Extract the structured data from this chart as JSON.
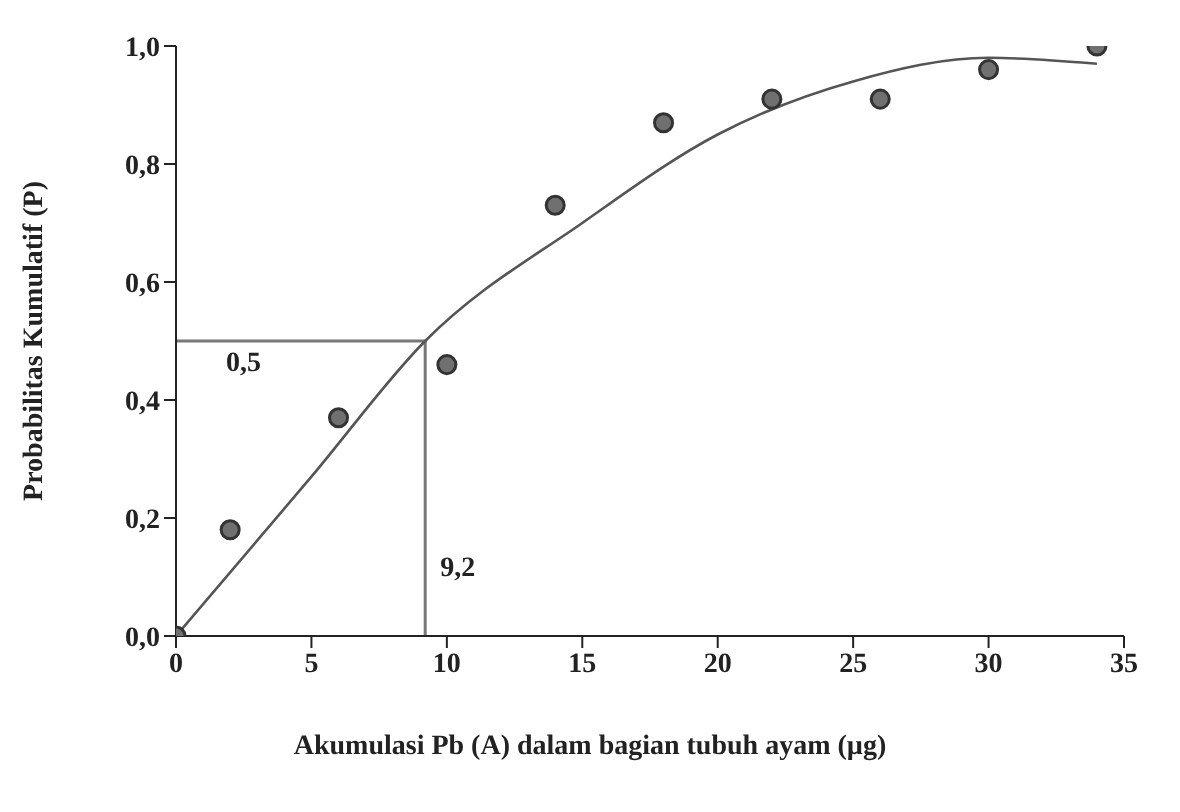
{
  "chart_data": {
    "type": "scatter",
    "xlabel": "Akumulasi Pb (A) dalam bagian tubuh ayam (µg)",
    "ylabel": "Probabilitas Kumulatif (P)",
    "xlim": [
      0,
      35
    ],
    "xticks": [
      0,
      5,
      10,
      15,
      20,
      25,
      30,
      35
    ],
    "ylim": [
      0,
      1
    ],
    "yticks": [
      {
        "value": 0,
        "label": "0,0"
      },
      {
        "value": 0.2,
        "label": "0,2"
      },
      {
        "value": 0.4,
        "label": "0,4"
      },
      {
        "value": 0.6,
        "label": "0,6"
      },
      {
        "value": 0.8,
        "label": "0,8"
      },
      {
        "value": 1,
        "label": "1,0"
      }
    ],
    "grid": false,
    "series": [
      {
        "color": "#707070",
        "marker": "circle",
        "x": [
          0,
          2,
          6,
          10,
          14,
          18,
          22,
          26,
          30,
          34
        ],
        "values": [
          0,
          0.18,
          0.37,
          0.46,
          0.73,
          0.87,
          0.91,
          0.91,
          0.96,
          1.0
        ]
      },
      {
        "type": "line",
        "color": "#555555",
        "marker": "none",
        "line_style": "solid",
        "x": [
          0,
          5,
          9.2,
          15,
          20,
          25,
          30,
          34
        ],
        "values": [
          0,
          0.27,
          0.5,
          0.7,
          0.85,
          0.94,
          0.98,
          0.97
        ]
      }
    ],
    "ref_lines": [
      {
        "axis": "y",
        "value": 0.5,
        "label": "0,5",
        "color": "#777777"
      },
      {
        "axis": "x",
        "value": 9.2,
        "label": "9,2",
        "color": "#777777"
      }
    ]
  }
}
